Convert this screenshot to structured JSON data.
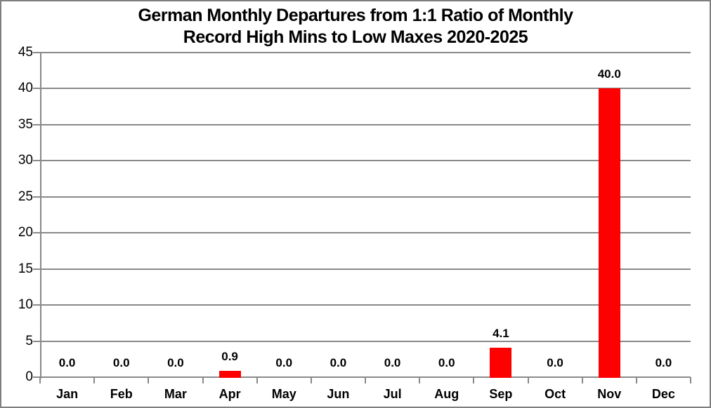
{
  "chart_data": {
    "type": "bar",
    "title": "German Monthly Departures from 1:1 Ratio of Monthly Record High Mins to Low Maxes 2020-2025",
    "title_lines": [
      "German Monthly Departures from 1:1 Ratio of Monthly",
      "Record High Mins to Low Maxes 2020-2025"
    ],
    "categories": [
      "Jan",
      "Feb",
      "Mar",
      "Apr",
      "May",
      "Jun",
      "Jul",
      "Aug",
      "Sep",
      "Oct",
      "Nov",
      "Dec"
    ],
    "values": [
      0.0,
      0.0,
      0.0,
      0.9,
      0.0,
      0.0,
      0.0,
      0.0,
      4.1,
      0.0,
      40.0,
      0.0
    ],
    "data_labels": [
      "0.0",
      "0.0",
      "0.0",
      "0.9",
      "0.0",
      "0.0",
      "0.0",
      "0.0",
      "4.1",
      "0.0",
      "40.0",
      "0.0"
    ],
    "xlabel": "",
    "ylabel": "",
    "ylim": [
      0,
      45
    ],
    "ytick_step": 5,
    "yticks": [
      0,
      5,
      10,
      15,
      20,
      25,
      30,
      35,
      40,
      45
    ],
    "grid": true,
    "legend": "none",
    "colors": {
      "bar": "#ff0000",
      "gridline": "#898989",
      "axis": "#898989",
      "frame_border": "#7f7f7f",
      "text": "#000000",
      "background": "#ffffff"
    }
  }
}
